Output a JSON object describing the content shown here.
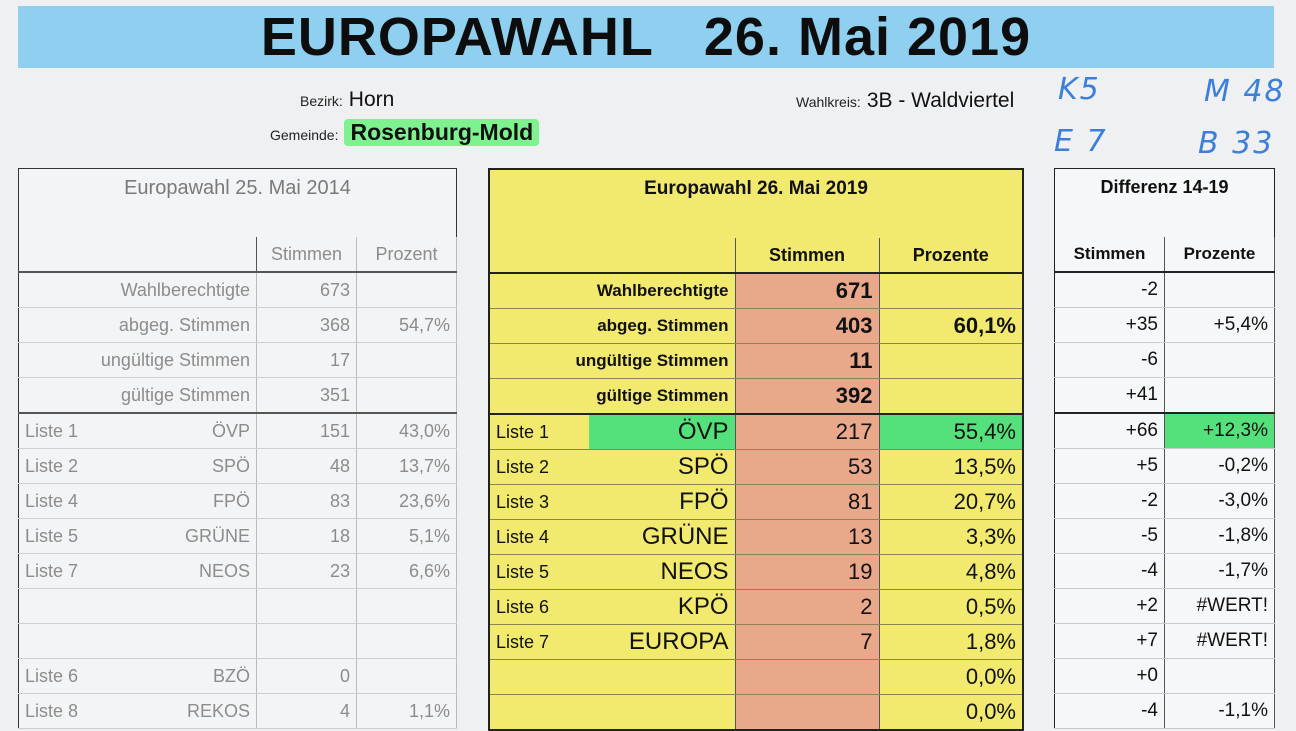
{
  "header": {
    "title": "EUROPAWAHL",
    "date": "26. Mai 2019"
  },
  "meta": {
    "bezirk_label": "Bezirk:",
    "bezirk": "Horn",
    "gemeinde_label": "Gemeinde:",
    "gemeinde": "Rosenburg-Mold",
    "wahlkreis_label": "Wahlkreis:",
    "wahlkreis": "3B - Waldviertel"
  },
  "handwritten": [
    "K5",
    "M 48",
    "E 7",
    "B 33"
  ],
  "t2014": {
    "title": "Europawahl 25. Mai 2014",
    "col_stimmen": "Stimmen",
    "col_prozent": "Prozent",
    "summary": [
      {
        "label": "Wahlberechtigte",
        "stimmen": "673",
        "prozent": ""
      },
      {
        "label": "abgeg. Stimmen",
        "stimmen": "368",
        "prozent": "54,7%"
      },
      {
        "label": "ungültige Stimmen",
        "stimmen": "17",
        "prozent": ""
      },
      {
        "label": "gültige Stimmen",
        "stimmen": "351",
        "prozent": ""
      }
    ],
    "lists": [
      {
        "liste": "Liste 1",
        "party": "ÖVP",
        "stimmen": "151",
        "prozent": "43,0%"
      },
      {
        "liste": "Liste 2",
        "party": "SPÖ",
        "stimmen": "48",
        "prozent": "13,7%"
      },
      {
        "liste": "Liste 4",
        "party": "FPÖ",
        "stimmen": "83",
        "prozent": "23,6%"
      },
      {
        "liste": "Liste 5",
        "party": "GRÜNE",
        "stimmen": "18",
        "prozent": "5,1%"
      },
      {
        "liste": "Liste 7",
        "party": "NEOS",
        "stimmen": "23",
        "prozent": "6,6%"
      },
      {
        "liste": "",
        "party": "",
        "stimmen": "",
        "prozent": ""
      },
      {
        "liste": "",
        "party": "",
        "stimmen": "",
        "prozent": ""
      },
      {
        "liste": "Liste 6",
        "party": "BZÖ",
        "stimmen": "0",
        "prozent": ""
      },
      {
        "liste": "Liste 8",
        "party": "REKOS",
        "stimmen": "4",
        "prozent": "1,1%"
      }
    ]
  },
  "t2019": {
    "title": "Europawahl 26. Mai 2019",
    "col_stimmen": "Stimmen",
    "col_prozent": "Prozente",
    "summary": [
      {
        "label": "Wahlberechtigte",
        "stimmen": "671",
        "prozent": ""
      },
      {
        "label": "abgeg. Stimmen",
        "stimmen": "403",
        "prozent": "60,1%"
      },
      {
        "label": "ungültige Stimmen",
        "stimmen": "11",
        "prozent": ""
      },
      {
        "label": "gültige Stimmen",
        "stimmen": "392",
        "prozent": ""
      }
    ],
    "lists": [
      {
        "liste": "Liste 1",
        "party": "ÖVP",
        "stimmen": "217",
        "prozent": "55,4%"
      },
      {
        "liste": "Liste 2",
        "party": "SPÖ",
        "stimmen": "53",
        "prozent": "13,5%"
      },
      {
        "liste": "Liste 3",
        "party": "FPÖ",
        "stimmen": "81",
        "prozent": "20,7%"
      },
      {
        "liste": "Liste 4",
        "party": "GRÜNE",
        "stimmen": "13",
        "prozent": "3,3%"
      },
      {
        "liste": "Liste 5",
        "party": "NEOS",
        "stimmen": "19",
        "prozent": "4,8%"
      },
      {
        "liste": "Liste 6",
        "party": "KPÖ",
        "stimmen": "2",
        "prozent": "0,5%"
      },
      {
        "liste": "Liste 7",
        "party": "EUROPA",
        "stimmen": "7",
        "prozent": "1,8%"
      },
      {
        "liste": "",
        "party": "",
        "stimmen": "",
        "prozent": "0,0%"
      },
      {
        "liste": "",
        "party": "",
        "stimmen": "",
        "prozent": "0,0%"
      }
    ]
  },
  "diff": {
    "title": "Differenz 14-19",
    "col_stimmen": "Stimmen",
    "col_prozent": "Prozente",
    "summary": [
      {
        "stimmen": "-2",
        "prozent": ""
      },
      {
        "stimmen": "+35",
        "prozent": "+5,4%"
      },
      {
        "stimmen": "-6",
        "prozent": ""
      },
      {
        "stimmen": "+41",
        "prozent": ""
      }
    ],
    "lists": [
      {
        "stimmen": "+66",
        "prozent": "+12,3%"
      },
      {
        "stimmen": "+5",
        "prozent": "-0,2%"
      },
      {
        "stimmen": "-2",
        "prozent": "-3,0%"
      },
      {
        "stimmen": "-5",
        "prozent": "-1,8%"
      },
      {
        "stimmen": "-4",
        "prozent": "-1,7%"
      },
      {
        "stimmen": "+2",
        "prozent": "#WERT!"
      },
      {
        "stimmen": "+7",
        "prozent": "#WERT!"
      },
      {
        "stimmen": "+0",
        "prozent": ""
      },
      {
        "stimmen": "-4",
        "prozent": "-1,1%"
      }
    ]
  },
  "highlight_color": "#54e07a"
}
